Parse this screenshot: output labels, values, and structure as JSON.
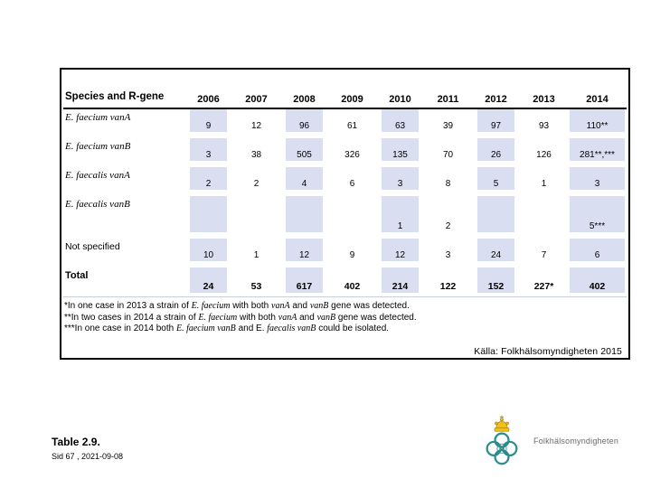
{
  "table": {
    "header": {
      "label": "Species and R-gene",
      "years": [
        "2006",
        "2007",
        "2008",
        "2009",
        "2010",
        "2011",
        "2012",
        "2013",
        "2014"
      ]
    },
    "rows": [
      {
        "label": "E. faecium vanA",
        "italic": true,
        "values": [
          "9",
          "12",
          "96",
          "61",
          "63",
          "39",
          "97",
          "93",
          "110**"
        ]
      },
      {
        "label": "E. faecium vanB",
        "italic": true,
        "values": [
          "3",
          "38",
          "505",
          "326",
          "135",
          "70",
          "26",
          "126",
          "281**,***"
        ]
      },
      {
        "label": "E. faecalis vanA",
        "italic": true,
        "values": [
          "2",
          "2",
          "4",
          "6",
          "3",
          "8",
          "5",
          "1",
          "3"
        ]
      },
      {
        "label": "E. faecalis vanB",
        "italic": true,
        "tall": true,
        "values": [
          "",
          "",
          "",
          "",
          "1",
          "2",
          "",
          "",
          "5***"
        ]
      },
      {
        "label": "Not specified",
        "italic": false,
        "values": [
          "10",
          "1",
          "12",
          "9",
          "12",
          "3",
          "24",
          "7",
          "6"
        ]
      },
      {
        "label": "Total",
        "italic": false,
        "bold": true,
        "values": [
          "24",
          "53",
          "617",
          "402",
          "214",
          "122",
          "152",
          "227*",
          "402"
        ]
      }
    ],
    "shaded_columns": [
      0,
      2,
      4,
      6,
      8
    ],
    "shade_color": "#d9def0"
  },
  "footnotes": [
    [
      {
        "t": "*In one case in 2013 a strain of "
      },
      {
        "t": "E. faecium",
        "i": true
      },
      {
        "t": " with both "
      },
      {
        "t": "vanA",
        "i": true
      },
      {
        "t": " and "
      },
      {
        "t": "vanB",
        "i": true
      },
      {
        "t": " gene was detected."
      }
    ],
    [
      {
        "t": "**In two cases in 2014 a strain of "
      },
      {
        "t": "E. faecium",
        "i": true
      },
      {
        "t": " with both "
      },
      {
        "t": "vanA",
        "i": true
      },
      {
        "t": " and "
      },
      {
        "t": "vanB",
        "i": true
      },
      {
        "t": " gene was detected."
      }
    ],
    [
      {
        "t": "***In one case in 2014 both "
      },
      {
        "t": "E. faecium vanB",
        "i": true
      },
      {
        "t": " and E. "
      },
      {
        "t": "faecalis vanB",
        "i": true
      },
      {
        "t": " could be isolated."
      }
    ]
  ],
  "source": "Källa: Folkhälsomyndigheten 2015",
  "footer": {
    "table_label": "Table 2.9.",
    "page_info": "Sid 67 , 2021-09-08"
  },
  "logo": {
    "text": "Folkhälsomyndigheten",
    "emblem": "crown-knot-emblem",
    "teal": "#2b8c8c",
    "gold": "#eec01d"
  }
}
